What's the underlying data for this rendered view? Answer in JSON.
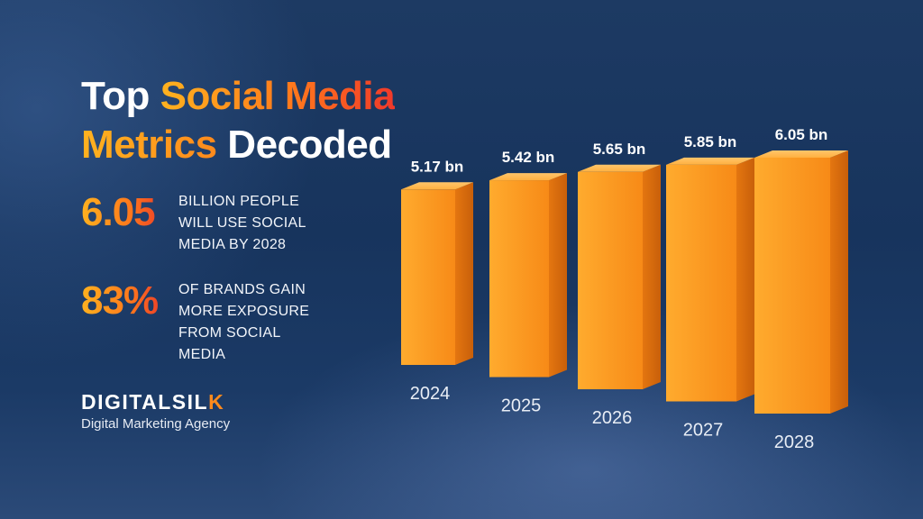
{
  "title": {
    "line1_white": "Top ",
    "line1_accent": "Social Media",
    "line2_accent": "Metrics",
    "line2_white": " Decoded"
  },
  "stats": [
    {
      "value": "6.05",
      "lines": [
        "BILLION PEOPLE",
        "WILL USE SOCIAL",
        "MEDIA BY 2028"
      ]
    },
    {
      "value": "83%",
      "lines": [
        "OF BRANDS GAIN",
        "MORE EXPOSURE",
        "FROM SOCIAL",
        "MEDIA"
      ]
    }
  ],
  "logo": {
    "brand_main": "DIGITALSIL",
    "brand_accent": "K",
    "tagline": "Digital Marketing Agency"
  },
  "colors": {
    "accent_orange": "#ff8a1c",
    "accent_red": "#f0392a",
    "bar_front": "#f7931e",
    "bar_side": "#e0700e"
  },
  "chart_data": {
    "type": "bar",
    "categories": [
      "2024",
      "2025",
      "2026",
      "2027",
      "2028"
    ],
    "values": [
      5.17,
      5.42,
      5.65,
      5.85,
      6.05
    ],
    "data_labels": [
      "5.17 bn",
      "5.42 bn",
      "5.65 bn",
      "5.85 bn",
      "6.05 bn"
    ],
    "title": "",
    "xlabel": "",
    "ylabel": "",
    "grid": false
  }
}
